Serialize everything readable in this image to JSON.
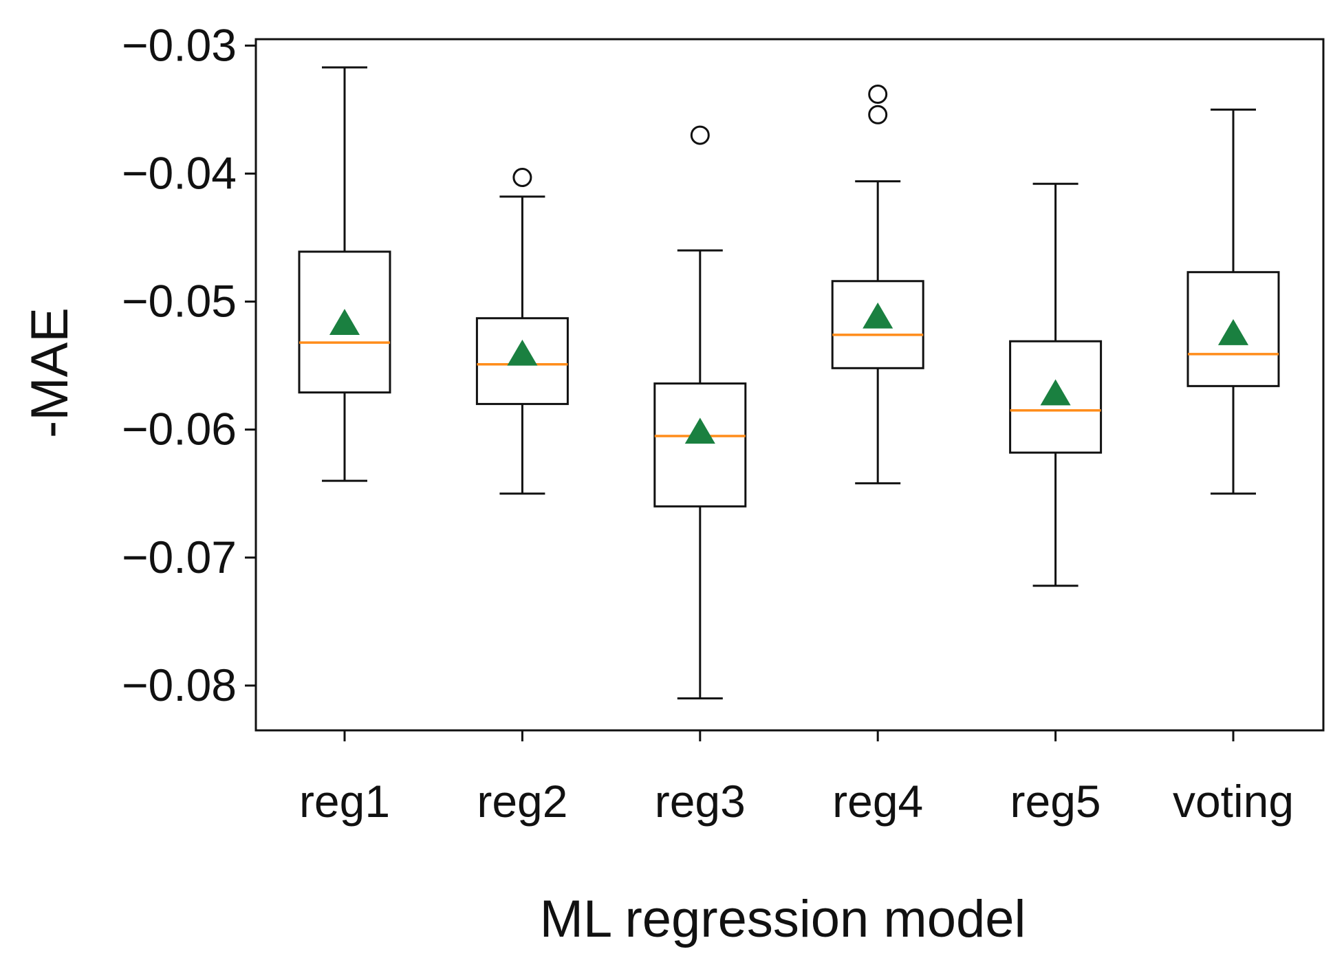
{
  "chart_data": {
    "type": "box",
    "title": "",
    "xlabel": "ML regression model",
    "ylabel": "-MAE",
    "ylim": [
      -0.0835,
      -0.0295
    ],
    "yticks": [
      -0.03,
      -0.04,
      -0.05,
      -0.06,
      -0.07,
      -0.08
    ],
    "ytick_labels": [
      "−0.03",
      "−0.04",
      "−0.05",
      "−0.06",
      "−0.07",
      "−0.08"
    ],
    "categories": [
      "reg1",
      "reg2",
      "reg3",
      "reg4",
      "reg5",
      "voting"
    ],
    "boxes": [
      {
        "name": "reg1",
        "whisker_low": -0.064,
        "q1": -0.0571,
        "median": -0.0532,
        "q3": -0.0461,
        "whisker_high": -0.0317,
        "mean": -0.0517,
        "outliers": []
      },
      {
        "name": "reg2",
        "whisker_low": -0.065,
        "q1": -0.058,
        "median": -0.0549,
        "q3": -0.0513,
        "whisker_high": -0.0418,
        "mean": -0.0541,
        "outliers": [
          -0.0403
        ]
      },
      {
        "name": "reg3",
        "whisker_low": -0.081,
        "q1": -0.066,
        "median": -0.0605,
        "q3": -0.0564,
        "whisker_high": -0.046,
        "mean": -0.0602,
        "outliers": [
          -0.037
        ]
      },
      {
        "name": "reg4",
        "whisker_low": -0.0642,
        "q1": -0.0552,
        "median": -0.0526,
        "q3": -0.0484,
        "whisker_high": -0.0406,
        "mean": -0.0512,
        "outliers": [
          -0.0338,
          -0.0354
        ]
      },
      {
        "name": "reg5",
        "whisker_low": -0.0722,
        "q1": -0.0618,
        "median": -0.0585,
        "q3": -0.0531,
        "whisker_high": -0.0408,
        "mean": -0.0572,
        "outliers": []
      },
      {
        "name": "voting",
        "whisker_low": -0.065,
        "q1": -0.0566,
        "median": -0.0541,
        "q3": -0.0477,
        "whisker_high": -0.035,
        "mean": -0.0525,
        "outliers": []
      }
    ],
    "colors": {
      "box_edge": "#111111",
      "median": "#ff8c1a",
      "mean_marker": "#1a8040",
      "outlier_edge": "#111111",
      "axes": "#111111"
    },
    "mean_marker": "triangle",
    "outlier_marker": "circle",
    "grid": false,
    "legend": "none"
  }
}
